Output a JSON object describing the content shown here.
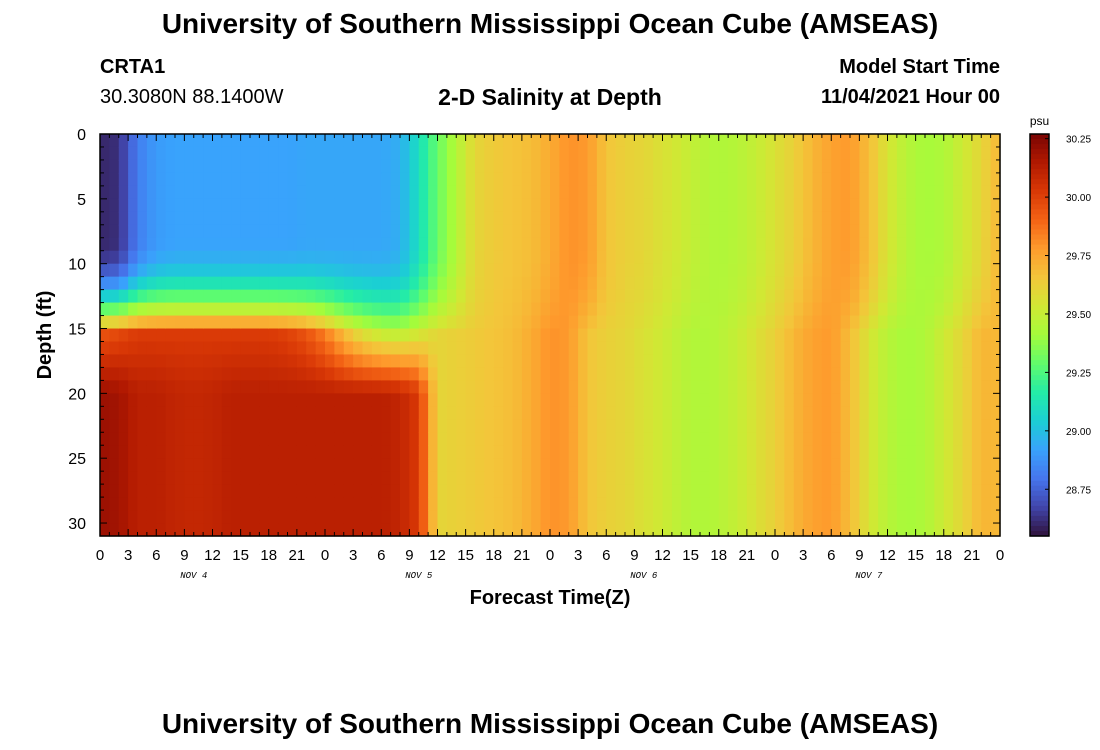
{
  "header": {
    "title": "University of Southern Mississippi Ocean Cube (AMSEAS)",
    "station_id": "CRTA1",
    "station_coords": "30.3080N  88.1400W",
    "plot_title": "2-D Salinity at Depth",
    "model_start_label": "Model Start Time",
    "model_start_value": "11/04/2021 Hour 00",
    "footer_title": "University of Southern Mississippi Ocean Cube (AMSEAS)"
  },
  "chart_data": {
    "type": "heatmap",
    "title": "2-D Salinity at Depth",
    "xlabel": "Forecast Time(Z)",
    "ylabel": "Depth (ft)",
    "x_tick_labels": [
      "0",
      "3",
      "6",
      "9",
      "12",
      "15",
      "18",
      "21",
      "0",
      "3",
      "6",
      "9",
      "12",
      "15",
      "18",
      "21",
      "0",
      "3",
      "6",
      "9",
      "12",
      "15",
      "18",
      "21",
      "0",
      "3",
      "6",
      "9",
      "12",
      "15",
      "18",
      "21",
      "0"
    ],
    "x_range_hours": [
      0,
      96
    ],
    "day_labels": [
      {
        "label": "NOV 4",
        "hour": 10
      },
      {
        "label": "NOV 5",
        "hour": 34
      },
      {
        "label": "NOV 6",
        "hour": 58
      },
      {
        "label": "NOV 7",
        "hour": 82
      }
    ],
    "y_ticks": [
      0,
      5,
      10,
      15,
      20,
      25,
      30
    ],
    "y_range": [
      0,
      31
    ],
    "y_inverted": true,
    "colorbar": {
      "unit": "psu",
      "min": 28.55,
      "max": 30.27,
      "tick_labels": [
        "30.25",
        "30.00",
        "29.75",
        "29.50",
        "29.25",
        "29.00",
        "28.75"
      ],
      "colors": [
        "#30123b",
        "#4145ab",
        "#4675ed",
        "#39a2fc",
        "#1bcfd4",
        "#24eca6",
        "#61fc6c",
        "#a4fc3b",
        "#d1e834",
        "#f3c63a",
        "#fe9b2d",
        "#f36315",
        "#d93806",
        "#b11901",
        "#7a0403"
      ]
    },
    "salinity_grid": {
      "note": "psu values on a 2-hour x 1-ft grid; hours 0..96, depths 0..31 ft",
      "hours": [
        0,
        2,
        4,
        6,
        8,
        10,
        12,
        14,
        16,
        18,
        20,
        22,
        24,
        26,
        28,
        30,
        32,
        34,
        36,
        38,
        40,
        42,
        44,
        46,
        48,
        50,
        52,
        54,
        56,
        58,
        60,
        62,
        64,
        66,
        68,
        70,
        72,
        74,
        76,
        78,
        80,
        82,
        84,
        86,
        88,
        90,
        92,
        94,
        96
      ],
      "depth_0_to_8ft": [
        28.6,
        28.62,
        28.82,
        28.9,
        28.92,
        28.92,
        28.92,
        28.92,
        28.92,
        28.92,
        28.92,
        28.93,
        28.93,
        28.93,
        28.93,
        28.93,
        28.95,
        29.1,
        29.3,
        29.45,
        29.6,
        29.64,
        29.66,
        29.68,
        29.73,
        29.8,
        29.78,
        29.66,
        29.62,
        29.6,
        29.56,
        29.52,
        29.47,
        29.44,
        29.46,
        29.5,
        29.56,
        29.62,
        29.7,
        29.76,
        29.78,
        29.68,
        29.55,
        29.46,
        29.42,
        29.44,
        29.52,
        29.6,
        29.7
      ],
      "depth_15_5_ft": [
        29.95,
        29.98,
        30.02,
        30.02,
        30.02,
        30.02,
        30.02,
        30.02,
        30.02,
        30.02,
        30.0,
        29.95,
        29.85,
        29.7,
        29.58,
        29.52,
        29.5,
        29.55,
        29.6,
        29.62,
        29.64,
        29.66,
        29.68,
        29.73,
        29.8,
        29.78,
        29.66,
        29.62,
        29.6,
        29.56,
        29.52,
        29.47,
        29.44,
        29.46,
        29.5,
        29.56,
        29.62,
        29.7,
        29.76,
        29.78,
        29.68,
        29.55,
        29.46,
        29.42,
        29.44,
        29.52,
        29.6,
        29.7,
        29.7
      ],
      "depth_20_to_30ft": [
        30.2,
        30.18,
        30.12,
        30.12,
        30.1,
        30.09,
        30.1,
        30.12,
        30.12,
        30.12,
        30.12,
        30.12,
        30.12,
        30.12,
        30.12,
        30.12,
        30.1,
        30.02,
        29.6,
        29.62,
        29.64,
        29.66,
        29.68,
        29.73,
        29.8,
        29.78,
        29.66,
        29.62,
        29.6,
        29.56,
        29.52,
        29.47,
        29.44,
        29.46,
        29.5,
        29.56,
        29.62,
        29.7,
        29.76,
        29.78,
        29.68,
        29.55,
        29.46,
        29.42,
        29.44,
        29.52,
        29.6,
        29.7,
        29.7
      ]
    }
  }
}
